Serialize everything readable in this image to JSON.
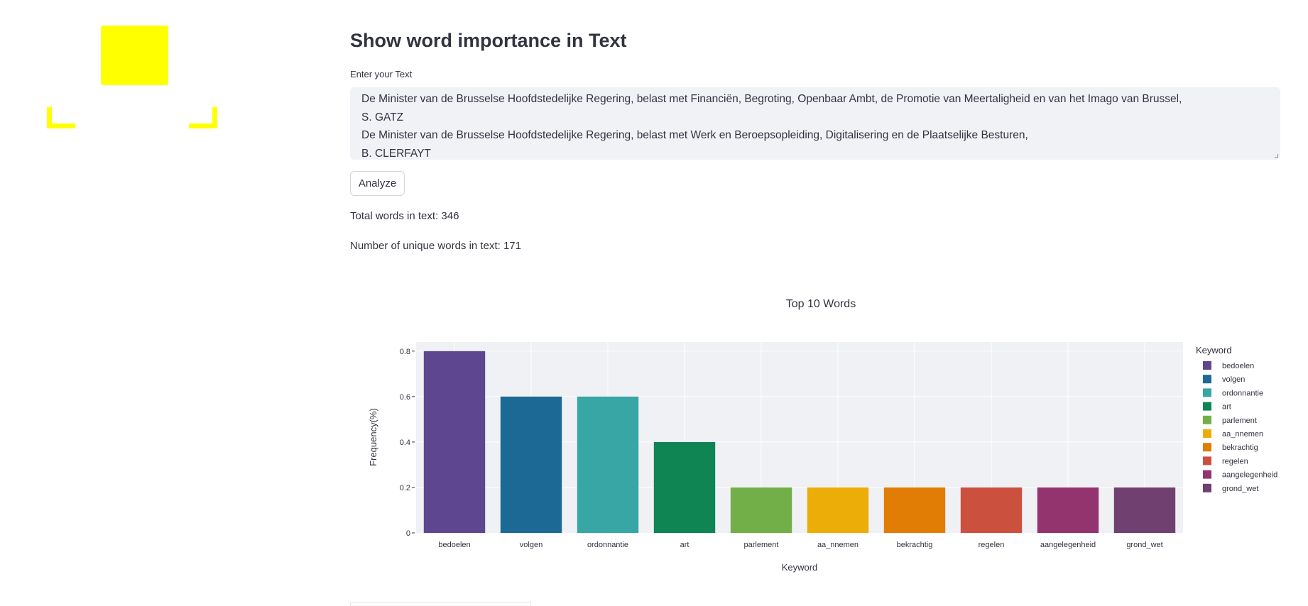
{
  "app": {
    "title": "Show word importance in Text",
    "input_label": "Enter your Text",
    "input_lines": [
      "De Minister van de Brusselse Hoofdstedelijke Regering, belast met Financiën, Begroting, Openbaar Ambt, de Promotie van Meertaligheid en van het Imago van Brussel,",
      "S. GATZ",
      "De Minister van de Brusselse Hoofdstedelijke Regering, belast met Werk en Beroepsopleiding, Digitalisering en de Plaatselijke Besturen,",
      "B. CLERFAYT"
    ],
    "analyze_label": "Analyze",
    "total_words_text": "Total words in text: 346",
    "unique_words_text": "Number of unique words in text: 171"
  },
  "colors": {
    "logo": "#ffff00",
    "plot_background": "#eff1f5"
  },
  "chart_data": {
    "type": "bar",
    "title": "Top 10 Words",
    "xlabel": "Keyword",
    "ylabel": "Frequency(%)",
    "ylim": [
      0,
      0.84
    ],
    "yticks": [
      0,
      0.2,
      0.4,
      0.6,
      0.8
    ],
    "ytick_labels": [
      "0",
      "0.2",
      "0.4",
      "0.6",
      "0.8"
    ],
    "categories": [
      "bedoelen",
      "volgen",
      "ordonnantie",
      "art",
      "parlement",
      "aa_nnemen",
      "bekrachtig",
      "regelen",
      "aangelegenheid",
      "grond_wet"
    ],
    "values": [
      0.8,
      0.6,
      0.6,
      0.4,
      0.2,
      0.2,
      0.2,
      0.2,
      0.2,
      0.2
    ],
    "bar_colors": [
      "#5f4690",
      "#1d6996",
      "#38a6a5",
      "#0f8554",
      "#73af48",
      "#edad08",
      "#e17c05",
      "#cc503e",
      "#94346e",
      "#6f4070"
    ],
    "legend_title": "Keyword",
    "legend_position": "right",
    "grid": true
  }
}
